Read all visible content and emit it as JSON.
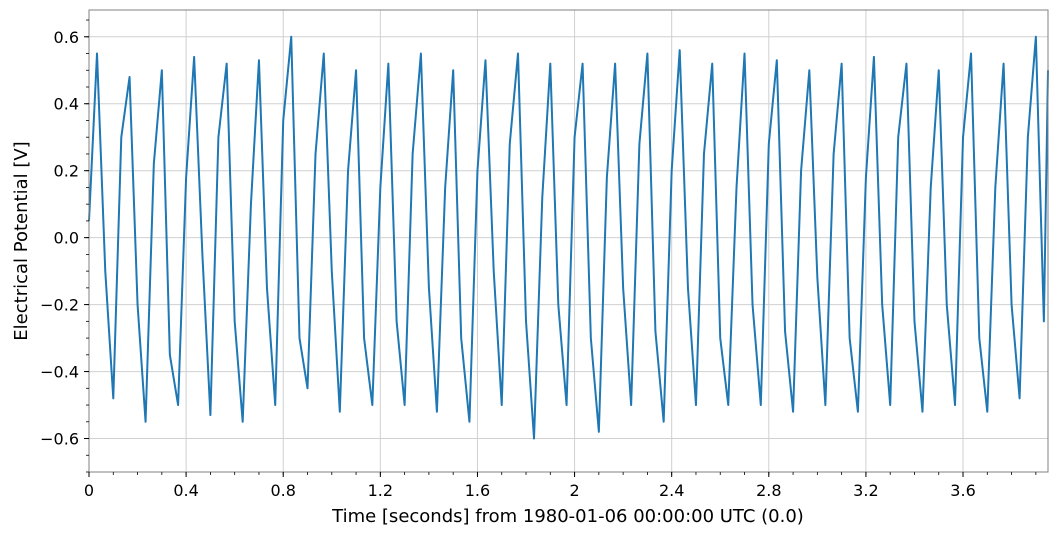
{
  "chart_data": {
    "type": "line",
    "title": "",
    "xlabel": "Time [seconds] from 1980-01-06 00:00:00 UTC (0.0)",
    "ylabel": "Electrical Potential [V]",
    "xlim": [
      0,
      3.95
    ],
    "ylim": [
      -0.7,
      0.68
    ],
    "grid": true,
    "legend": "none",
    "x_ticks": [
      0,
      0.4,
      0.8,
      1.2,
      1.6,
      2.0,
      2.4,
      2.8,
      3.2,
      3.6
    ],
    "x_tick_labels": [
      "0",
      "0.4",
      "0.8",
      "1.2",
      "1.6",
      "2",
      "2.4",
      "2.8",
      "3.2",
      "3.6"
    ],
    "y_ticks": [
      -0.6,
      -0.4,
      -0.2,
      0.0,
      0.2,
      0.4,
      0.6
    ],
    "y_tick_labels": [
      "−0.6",
      "−0.4",
      "−0.2",
      "0.0",
      "0.2",
      "0.4",
      "0.6"
    ],
    "series": [
      {
        "color": "#1f77b4",
        "signal": "approx. 7.5 Hz oscillation with amplitude about 0.5 V plus high-frequency noise",
        "x": [
          0.0,
          0.033,
          0.067,
          0.1,
          0.133,
          0.167,
          0.2,
          0.233,
          0.267,
          0.3,
          0.333,
          0.367,
          0.4,
          0.433,
          0.467,
          0.5,
          0.533,
          0.567,
          0.6,
          0.633,
          0.667,
          0.7,
          0.733,
          0.767,
          0.8,
          0.833,
          0.867,
          0.9,
          0.933,
          0.967,
          1.0,
          1.033,
          1.067,
          1.1,
          1.133,
          1.167,
          1.2,
          1.233,
          1.267,
          1.3,
          1.333,
          1.367,
          1.4,
          1.433,
          1.467,
          1.5,
          1.533,
          1.567,
          1.6,
          1.633,
          1.667,
          1.7,
          1.733,
          1.767,
          1.8,
          1.833,
          1.867,
          1.9,
          1.933,
          1.967,
          2.0,
          2.033,
          2.067,
          2.1,
          2.133,
          2.167,
          2.2,
          2.233,
          2.267,
          2.3,
          2.333,
          2.367,
          2.4,
          2.433,
          2.467,
          2.5,
          2.533,
          2.567,
          2.6,
          2.633,
          2.667,
          2.7,
          2.733,
          2.767,
          2.8,
          2.833,
          2.867,
          2.9,
          2.933,
          2.967,
          3.0,
          3.033,
          3.067,
          3.1,
          3.133,
          3.167,
          3.2,
          3.233,
          3.267,
          3.3,
          3.333,
          3.367,
          3.4,
          3.433,
          3.467,
          3.5,
          3.533,
          3.567,
          3.6,
          3.633,
          3.667,
          3.7,
          3.733,
          3.767,
          3.8,
          3.833,
          3.867,
          3.9,
          3.933,
          3.95
        ],
        "values": [
          0.05,
          0.55,
          -0.1,
          -0.48,
          0.3,
          0.48,
          -0.2,
          -0.55,
          0.22,
          0.5,
          -0.35,
          -0.5,
          0.18,
          0.54,
          -0.05,
          -0.53,
          0.3,
          0.52,
          -0.25,
          -0.55,
          0.1,
          0.53,
          -0.15,
          -0.5,
          0.35,
          0.6,
          -0.3,
          -0.45,
          0.25,
          0.55,
          -0.1,
          -0.52,
          0.2,
          0.5,
          -0.3,
          -0.5,
          0.15,
          0.52,
          -0.25,
          -0.5,
          0.25,
          0.55,
          -0.15,
          -0.52,
          0.15,
          0.5,
          -0.3,
          -0.55,
          0.2,
          0.53,
          -0.1,
          -0.5,
          0.28,
          0.55,
          -0.25,
          -0.6,
          0.12,
          0.52,
          -0.2,
          -0.5,
          0.3,
          0.52,
          -0.3,
          -0.58,
          0.18,
          0.52,
          -0.15,
          -0.5,
          0.28,
          0.55,
          -0.28,
          -0.55,
          0.2,
          0.56,
          -0.15,
          -0.5,
          0.25,
          0.52,
          -0.3,
          -0.5,
          0.15,
          0.55,
          -0.2,
          -0.5,
          0.28,
          0.53,
          -0.28,
          -0.52,
          0.2,
          0.5,
          -0.12,
          -0.5,
          0.25,
          0.52,
          -0.3,
          -0.52,
          0.18,
          0.54,
          -0.2,
          -0.5,
          0.3,
          0.52,
          -0.25,
          -0.52,
          0.15,
          0.5,
          -0.2,
          -0.5,
          0.3,
          0.55,
          -0.3,
          -0.52,
          0.15,
          0.52,
          -0.2,
          -0.48,
          0.3,
          0.6,
          -0.25,
          0.5
        ]
      }
    ]
  }
}
